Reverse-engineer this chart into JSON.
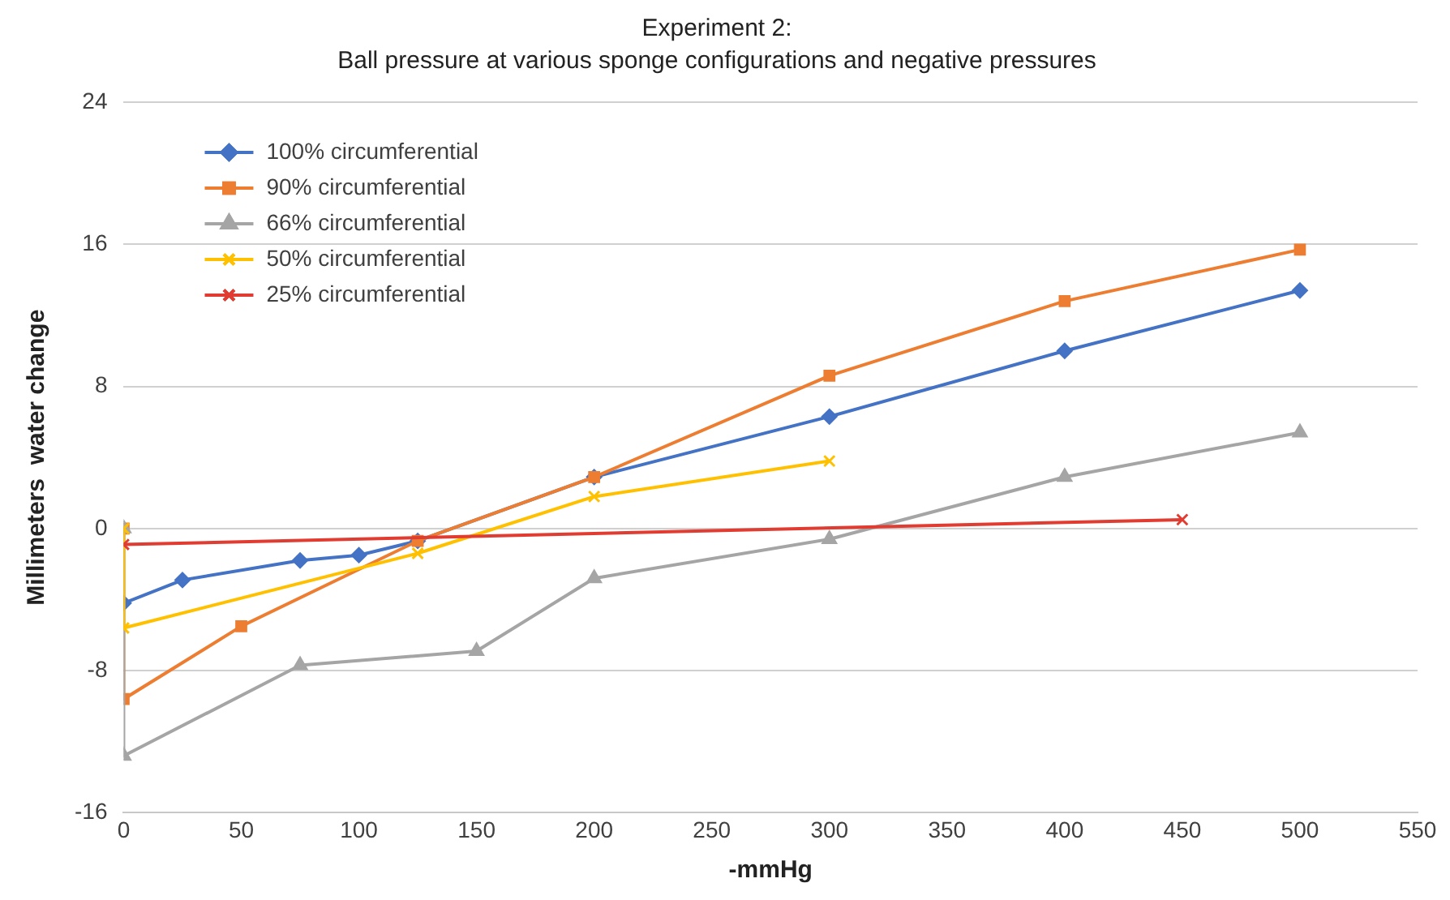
{
  "chart_data": {
    "type": "line",
    "title": "Experiment 2:",
    "subtitle": "Ball pressure at various sponge configurations and negative pressures",
    "xlabel": "-mmHg",
    "ylabel": "Millimeters  water change",
    "xlim": [
      0,
      550
    ],
    "xticks": [
      0,
      50,
      100,
      150,
      200,
      250,
      300,
      350,
      400,
      450,
      500,
      550
    ],
    "ylim": [
      -16,
      24
    ],
    "yticks": [
      -16,
      -8,
      0,
      8,
      16,
      24
    ],
    "grid": "y",
    "legend": "top left",
    "series": [
      {
        "name": "100% circumferential",
        "color": "#4472c4",
        "marker": "diamond",
        "x": [
          0,
          25,
          75,
          100,
          125,
          200,
          300,
          400,
          500
        ],
        "values": [
          -4.2,
          -2.9,
          -1.8,
          -1.5,
          -0.7,
          2.9,
          6.3,
          10.0,
          13.4
        ]
      },
      {
        "name": "90% circumferential",
        "color": "#ed7d31",
        "marker": "square",
        "x": [
          0,
          0,
          50,
          125,
          200,
          300,
          400,
          500
        ],
        "values": [
          0,
          -9.6,
          -5.5,
          -0.7,
          2.9,
          8.6,
          12.8,
          15.7
        ]
      },
      {
        "name": "66% circumferential",
        "color": "#a5a5a5",
        "marker": "triangle",
        "x": [
          0,
          0,
          75,
          150,
          200,
          300,
          400,
          500
        ],
        "values": [
          0,
          -12.8,
          -7.7,
          -6.9,
          -2.8,
          -0.6,
          2.9,
          5.4
        ]
      },
      {
        "name": "50% circumferential",
        "color": "#ffc000",
        "marker": "cross",
        "x": [
          0,
          0,
          125,
          200,
          300
        ],
        "values": [
          0,
          -5.6,
          -1.4,
          1.8,
          3.8
        ]
      },
      {
        "name": "25% circumferential",
        "color": "#e03c31",
        "marker": "cross",
        "x": [
          0,
          450
        ],
        "values": [
          -0.9,
          0.5
        ]
      }
    ]
  }
}
